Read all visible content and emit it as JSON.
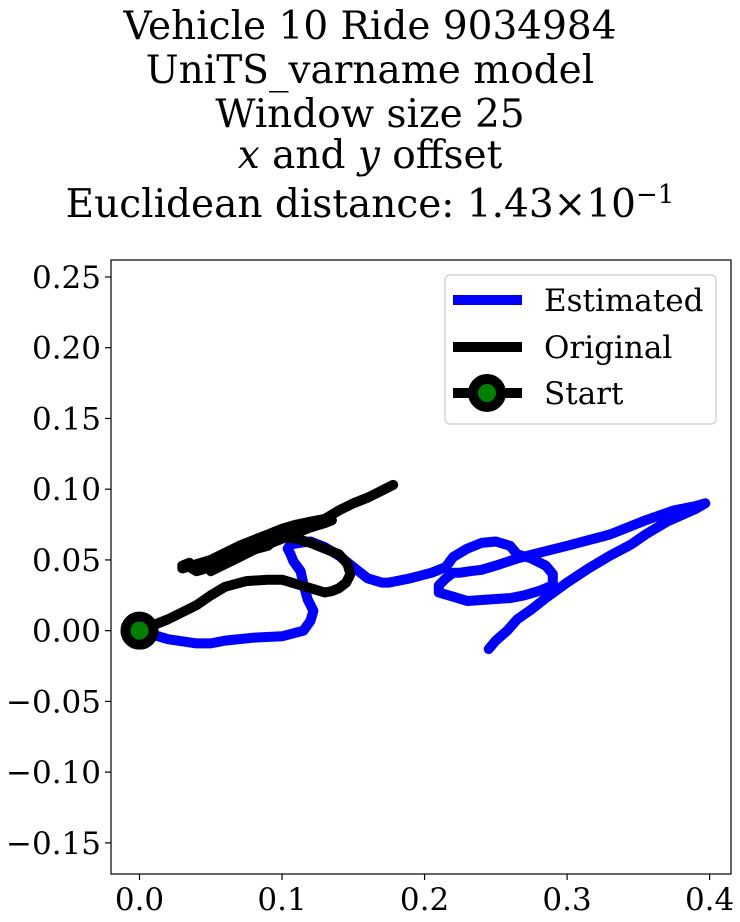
{
  "chart_data": {
    "type": "line",
    "title_lines": [
      "Vehicle 10 Ride 9034984",
      "UniTS_varname model",
      "Window size 25"
    ],
    "title_line4": {
      "x": "x",
      "and": " and ",
      "y": "y",
      "rest": " offset"
    },
    "title_line5": {
      "prefix": "Euclidean distance: ",
      "mantissa": "1.43",
      "times": "×",
      "base": "10",
      "exponent": "−1"
    },
    "xlim": [
      -0.02,
      0.415
    ],
    "ylim": [
      -0.172,
      0.262
    ],
    "x_ticks": [
      {
        "value": 0.0,
        "label": "0.0"
      },
      {
        "value": 0.1,
        "label": "0.1"
      },
      {
        "value": 0.2,
        "label": "0.2"
      },
      {
        "value": 0.3,
        "label": "0.3"
      },
      {
        "value": 0.4,
        "label": "0.4"
      }
    ],
    "y_ticks": [
      {
        "value": 0.25,
        "label": "0.25"
      },
      {
        "value": 0.2,
        "label": "0.20"
      },
      {
        "value": 0.15,
        "label": "0.15"
      },
      {
        "value": 0.1,
        "label": "0.10"
      },
      {
        "value": 0.05,
        "label": "0.05"
      },
      {
        "value": 0.0,
        "label": "0.00"
      },
      {
        "value": -0.05,
        "label": "−0.05"
      },
      {
        "value": -0.1,
        "label": "−0.10"
      },
      {
        "value": -0.15,
        "label": "−0.15"
      }
    ],
    "grid": false,
    "legend_position": "top-right",
    "series": [
      {
        "name": "Estimated",
        "color": "#0000ff",
        "x": [
          0.0,
          0.02,
          0.04,
          0.05,
          0.06,
          0.08,
          0.1,
          0.115,
          0.12,
          0.122,
          0.118,
          0.115,
          0.113,
          0.108,
          0.106,
          0.104,
          0.106,
          0.112,
          0.12,
          0.13,
          0.14,
          0.15,
          0.16,
          0.17,
          0.175,
          0.19,
          0.205,
          0.215,
          0.22,
          0.23,
          0.24,
          0.25,
          0.26,
          0.265,
          0.275,
          0.285,
          0.29,
          0.29,
          0.28,
          0.27,
          0.26,
          0.245,
          0.23,
          0.22,
          0.21,
          0.21,
          0.215,
          0.22,
          0.225,
          0.232,
          0.24,
          0.25,
          0.265,
          0.28,
          0.3,
          0.33,
          0.355,
          0.375,
          0.39,
          0.397,
          0.39,
          0.37,
          0.355,
          0.345,
          0.33,
          0.315,
          0.3,
          0.285,
          0.275,
          0.265,
          0.258,
          0.25,
          0.245
        ],
        "y": [
          0.0,
          -0.006,
          -0.009,
          -0.009,
          -0.007,
          -0.005,
          -0.004,
          0.0,
          0.007,
          0.014,
          0.022,
          0.033,
          0.042,
          0.049,
          0.054,
          0.058,
          0.061,
          0.062,
          0.063,
          0.059,
          0.053,
          0.045,
          0.037,
          0.034,
          0.034,
          0.037,
          0.041,
          0.045,
          0.052,
          0.058,
          0.062,
          0.063,
          0.06,
          0.054,
          0.051,
          0.046,
          0.04,
          0.032,
          0.028,
          0.025,
          0.023,
          0.022,
          0.021,
          0.024,
          0.027,
          0.032,
          0.037,
          0.041,
          0.041,
          0.042,
          0.043,
          0.046,
          0.051,
          0.055,
          0.06,
          0.068,
          0.078,
          0.085,
          0.088,
          0.09,
          0.086,
          0.077,
          0.068,
          0.061,
          0.053,
          0.044,
          0.034,
          0.023,
          0.015,
          0.008,
          0.0,
          -0.007,
          -0.013
        ]
      },
      {
        "name": "Original",
        "color": "#000000",
        "x": [
          0.0,
          0.02,
          0.04,
          0.05,
          0.06,
          0.075,
          0.09,
          0.1,
          0.11,
          0.12,
          0.13,
          0.135,
          0.14,
          0.145,
          0.148,
          0.146,
          0.14,
          0.13,
          0.12,
          0.11,
          0.1,
          0.095,
          0.09,
          0.075,
          0.065,
          0.055,
          0.05,
          0.04,
          0.035,
          0.035,
          0.03,
          0.03,
          0.04,
          0.05,
          0.06,
          0.07,
          0.08,
          0.09,
          0.1,
          0.11,
          0.12,
          0.13,
          0.14,
          0.15,
          0.16,
          0.17,
          0.178,
          0.17,
          0.16,
          0.15,
          0.14,
          0.13,
          0.12,
          0.1,
          0.08,
          0.065,
          0.055,
          0.05,
          0.06,
          0.07,
          0.08,
          0.09,
          0.1,
          0.11,
          0.12,
          0.13,
          0.135
        ],
        "y": [
          0.0,
          0.008,
          0.018,
          0.025,
          0.031,
          0.035,
          0.036,
          0.036,
          0.033,
          0.03,
          0.027,
          0.028,
          0.03,
          0.034,
          0.04,
          0.047,
          0.054,
          0.058,
          0.062,
          0.065,
          0.066,
          0.064,
          0.06,
          0.056,
          0.052,
          0.049,
          0.045,
          0.042,
          0.045,
          0.048,
          0.046,
          0.044,
          0.047,
          0.05,
          0.055,
          0.06,
          0.064,
          0.068,
          0.072,
          0.075,
          0.077,
          0.079,
          0.085,
          0.09,
          0.094,
          0.099,
          0.103,
          0.099,
          0.094,
          0.09,
          0.085,
          0.079,
          0.075,
          0.068,
          0.06,
          0.053,
          0.046,
          0.042,
          0.047,
          0.052,
          0.057,
          0.061,
          0.065,
          0.069,
          0.073,
          0.076,
          0.078
        ]
      }
    ],
    "start": {
      "x": 0.0,
      "y": 0.0,
      "marker_face": "#008000",
      "marker_edge": "#000000",
      "legend_label": "Start"
    }
  }
}
